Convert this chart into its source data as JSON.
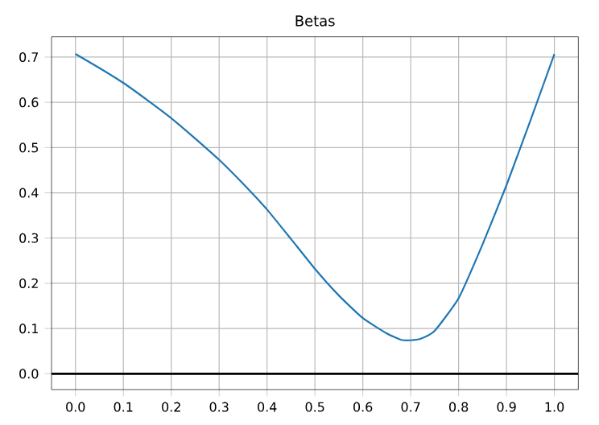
{
  "chart_data": {
    "type": "line",
    "title": "Betas",
    "x": [
      0,
      0.05,
      0.1,
      0.15,
      0.2,
      0.25,
      0.3,
      0.35,
      0.4,
      0.45,
      0.5,
      0.55,
      0.6,
      0.65,
      0.68,
      0.7,
      0.72,
      0.75,
      0.8,
      0.85,
      0.9,
      0.95,
      1.0
    ],
    "series": [
      {
        "color": "#1f77b4",
        "values": [
          0.707,
          0.676,
          0.643,
          0.605,
          0.565,
          0.52,
          0.473,
          0.42,
          0.363,
          0.298,
          0.232,
          0.173,
          0.123,
          0.089,
          0.075,
          0.074,
          0.077,
          0.095,
          0.167,
          0.286,
          0.417,
          0.56,
          0.707
        ]
      }
    ],
    "xlim": [
      -0.05,
      1.05
    ],
    "ylim": [
      -0.035,
      0.745
    ],
    "xticks": [
      {
        "value": 0,
        "label": "0.0"
      },
      0.1,
      0.2,
      0.3,
      0.4,
      0.5,
      0.6,
      0.7,
      0.8,
      0.9,
      {
        "value": 1,
        "label": "1.0"
      }
    ],
    "yticks": [
      {
        "value": 0,
        "label": "0.0"
      },
      0.1,
      0.2,
      0.3,
      0.4,
      0.5,
      0.6,
      0.7
    ],
    "grid": true,
    "ref_lines": [
      {
        "axis": "y",
        "value": 0,
        "color": "#000000"
      }
    ]
  }
}
